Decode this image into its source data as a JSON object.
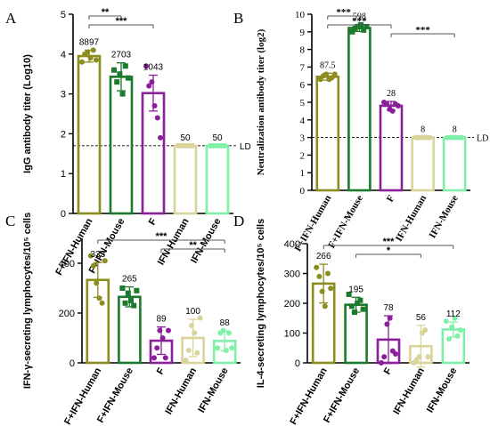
{
  "colors": {
    "olive": "#8c8c1f",
    "green": "#1b7a2c",
    "purple": "#8a1f9a",
    "beige": "#d8d49a",
    "mint": "#7ff0a8",
    "axis": "#000000",
    "bracket": "#555555"
  },
  "chart_data": [
    {
      "panel": "A",
      "type": "bar",
      "font": "sans",
      "categories": [
        "F+IFN-Human",
        "F+IFN-Mouse",
        "F",
        "IFN-Human",
        "IFN-Mouse"
      ],
      "values": [
        3.95,
        3.43,
        3.02,
        1.7,
        1.7
      ],
      "errors": [
        0.15,
        0.35,
        0.45,
        0.0,
        0.0
      ],
      "labels": [
        "8897",
        "2703",
        "1043",
        "50",
        "50"
      ],
      "points": [
        [
          3.8,
          4.0,
          4.05,
          3.9,
          4.1,
          3.85
        ],
        [
          3.6,
          3.3,
          3.5,
          3.0,
          3.7,
          3.4
        ],
        [
          3.7,
          3.2,
          3.3,
          2.7,
          2.4,
          1.9
        ],
        [
          1.7,
          1.7,
          1.7,
          1.7,
          1.7,
          1.7
        ],
        [
          1.7,
          1.7,
          1.7,
          1.7,
          1.7,
          1.7
        ]
      ],
      "ylabel": "IgG antibody titer (Log10)",
      "yticks": [
        0,
        1,
        2,
        3,
        4,
        5
      ],
      "ylim": [
        0,
        5
      ],
      "dashed_line": {
        "value": 1.7,
        "label": "LD"
      },
      "significance": [
        {
          "from": 0,
          "to": 1,
          "label": "**"
        },
        {
          "from": 0,
          "to": 2,
          "label": "***"
        }
      ]
    },
    {
      "panel": "B",
      "type": "bar",
      "font": "serif",
      "categories": [
        "F+IFN-Human",
        "F+IFN-Mouse",
        "F",
        "IFN-Human",
        "IFN-Mouse"
      ],
      "values": [
        6.45,
        9.22,
        4.8,
        3.0,
        3.0
      ],
      "errors": [
        0.2,
        0.2,
        0.25,
        0.0,
        0.0
      ],
      "labels": [
        "87.5",
        "598",
        "28",
        "8",
        "8"
      ],
      "points": [
        [
          6.3,
          6.5,
          6.6,
          6.3,
          6.4,
          6.6
        ],
        [
          9.0,
          9.2,
          9.3,
          9.4,
          9.1,
          9.3
        ],
        [
          5.0,
          4.9,
          4.6,
          4.5,
          4.9,
          4.8
        ],
        [
          3,
          3,
          3,
          3,
          3,
          3
        ],
        [
          3,
          3,
          3,
          3,
          3,
          3
        ]
      ],
      "ylabel": "Neutralization antibody titer (log2)",
      "yticks": [
        0,
        1,
        2,
        3,
        4,
        5,
        6,
        7,
        8,
        9,
        10
      ],
      "ylim": [
        0,
        10
      ],
      "dashed_line": {
        "value": 3.0,
        "label": "LD"
      },
      "significance": [
        {
          "from": 0,
          "to": 1,
          "label": "***"
        },
        {
          "from": 0,
          "to": 2,
          "label": "***"
        },
        {
          "from": 2,
          "to": 4,
          "label": "***"
        }
      ]
    },
    {
      "panel": "C",
      "type": "bar",
      "font": "sans",
      "categories": [
        "F+IFN-Human",
        "F+IFN-Mouse",
        "F",
        "IFN-Human",
        "IFN-Mouse"
      ],
      "values": [
        333,
        265,
        89,
        100,
        88
      ],
      "errors": [
        70,
        40,
        55,
        75,
        40
      ],
      "labels": [
        "333",
        "265",
        "89",
        "100",
        "88"
      ],
      "points": [
        [
          430,
          390,
          320,
          260,
          240,
          410
        ],
        [
          300,
          240,
          280,
          250,
          230,
          290
        ],
        [
          20,
          60,
          130,
          100,
          20,
          130
        ],
        [
          10,
          50,
          150,
          120,
          40,
          180
        ],
        [
          60,
          120,
          130,
          50,
          120,
          60
        ]
      ],
      "ylabel": "IFN-γ-secreting lymphocytes/10⁵ cells",
      "yticks": [
        0,
        200,
        400
      ],
      "ylim": [
        0,
        500
      ],
      "significance": [
        {
          "from": 0,
          "to": 4,
          "label": "***"
        },
        {
          "from": 2,
          "to": 4,
          "label": "**"
        }
      ]
    },
    {
      "panel": "D",
      "type": "bar",
      "font": "sans",
      "categories": [
        "F+IFN-Human",
        "F+IFN-Mouse",
        "F",
        "IFN-Human",
        "IFN-Mouse"
      ],
      "values": [
        266,
        195,
        78,
        56,
        112
      ],
      "errors": [
        65,
        25,
        80,
        70,
        25
      ],
      "labels": [
        "266",
        "195",
        "78",
        "56",
        "112"
      ],
      "points": [
        [
          320,
          290,
          240,
          190,
          300,
          250
        ],
        [
          230,
          190,
          170,
          200,
          210,
          180
        ],
        [
          0,
          20,
          130,
          150,
          40,
          30
        ],
        [
          0,
          10,
          20,
          100,
          110,
          20
        ],
        [
          140,
          80,
          120,
          150,
          90,
          110
        ]
      ],
      "ylabel": "IL-4-secreting lymphocytes/10⁵ cells",
      "yticks": [
        0,
        100,
        200,
        300,
        400
      ],
      "ylim": [
        0,
        400
      ],
      "significance": [
        {
          "from": 0,
          "to": 4,
          "label": "***"
        },
        {
          "from": 1,
          "to": 3,
          "label": "*"
        }
      ]
    }
  ]
}
